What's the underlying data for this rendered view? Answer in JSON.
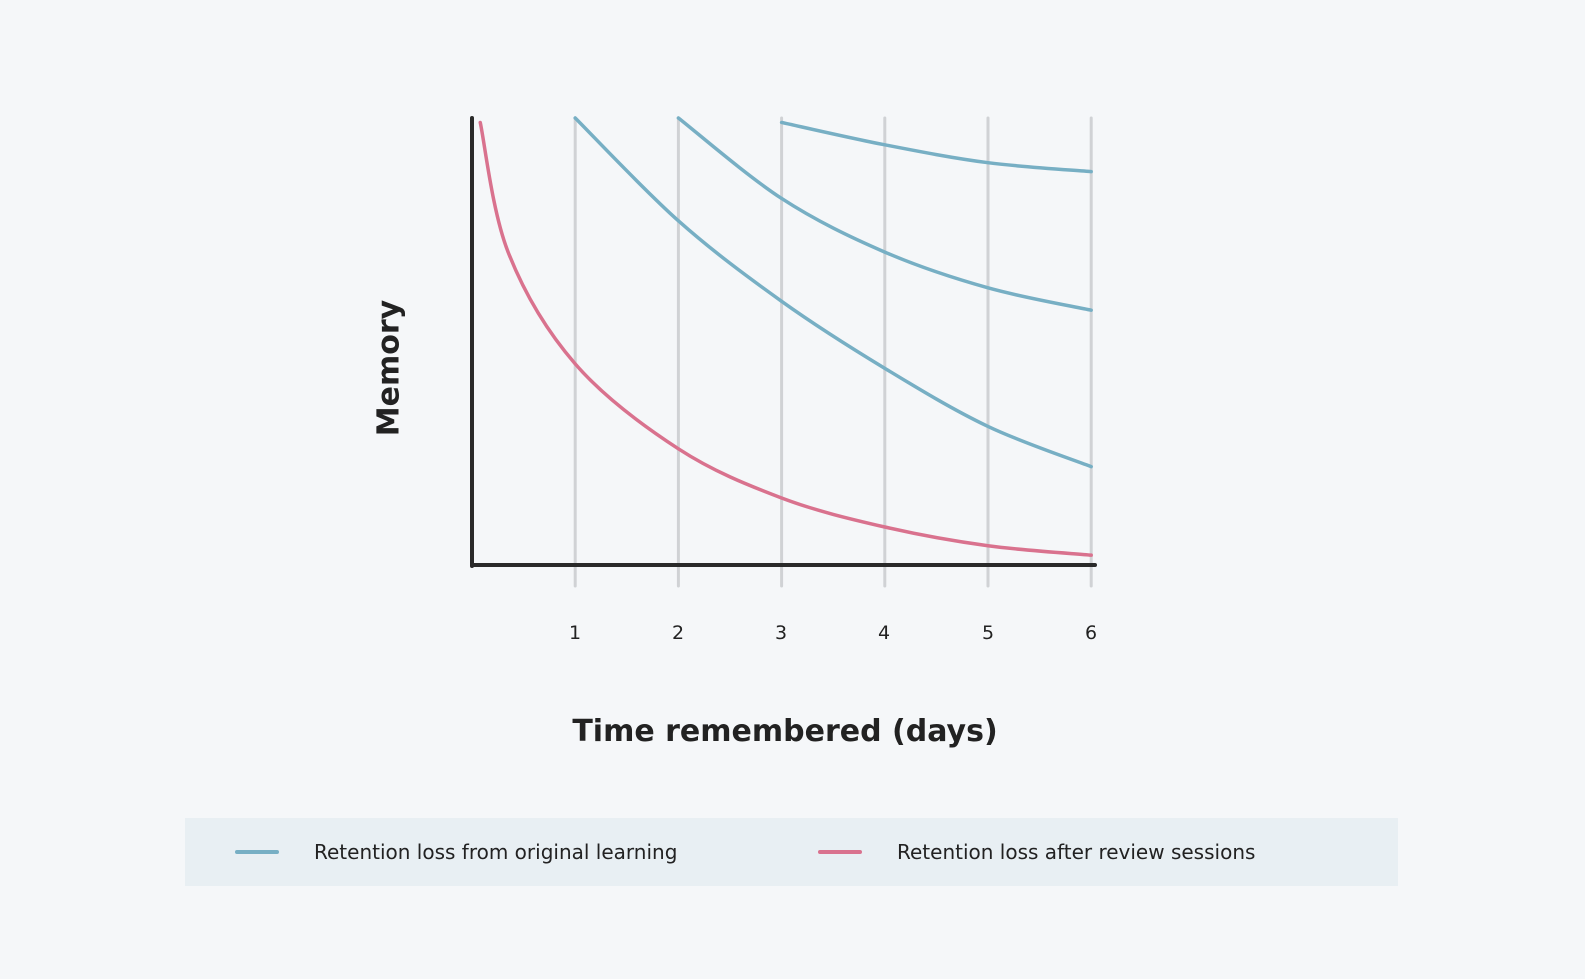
{
  "chart_data": {
    "type": "line",
    "title": "",
    "xlabel": "Time remembered (days)",
    "ylabel": "Memory",
    "x_ticks": [
      "1",
      "2",
      "3",
      "4",
      "5",
      "6"
    ],
    "xlim": [
      0,
      6
    ],
    "ylim": [
      0,
      100
    ],
    "grid": "vertical lines at each day",
    "legend_position": "bottom",
    "series": [
      {
        "name": "Retention loss after review sessions",
        "color": "#d9728e",
        "x": [
          0.08,
          1,
          2,
          3,
          4,
          5,
          6
        ],
        "y": [
          99,
          45,
          26,
          15,
          8.5,
          4.3,
          2.2
        ]
      },
      {
        "name": "Retention loss from original learning",
        "color": "#77afc4",
        "x": [
          1,
          2,
          3,
          4,
          5,
          6
        ],
        "y": [
          100,
          77,
          59,
          44,
          31,
          22
        ]
      },
      {
        "name": "Retention loss from original learning",
        "color": "#77afc4",
        "x": [
          2,
          3,
          4,
          5,
          6
        ],
        "y": [
          100,
          82,
          70,
          62,
          57
        ]
      },
      {
        "name": "Retention loss from original learning",
        "color": "#77afc4",
        "x": [
          3,
          4,
          5,
          6
        ],
        "y": [
          99,
          94,
          90,
          88
        ]
      }
    ]
  },
  "axes": {
    "xlabel": "Time remembered (days)",
    "ylabel": "Memory",
    "ticks": [
      "1",
      "2",
      "3",
      "4",
      "5",
      "6"
    ]
  },
  "legend": {
    "items": [
      {
        "label": "Retention loss from original learning",
        "color": "#77afc4"
      },
      {
        "label": "Retention loss after review sessions",
        "color": "#d9728e"
      }
    ]
  },
  "colors": {
    "background": "#f5f7f9",
    "legend_bg": "#e8eff3",
    "axis": "#2a2a2a",
    "grid": "#d0d2d5",
    "blue": "#77afc4",
    "pink": "#d9728e"
  }
}
